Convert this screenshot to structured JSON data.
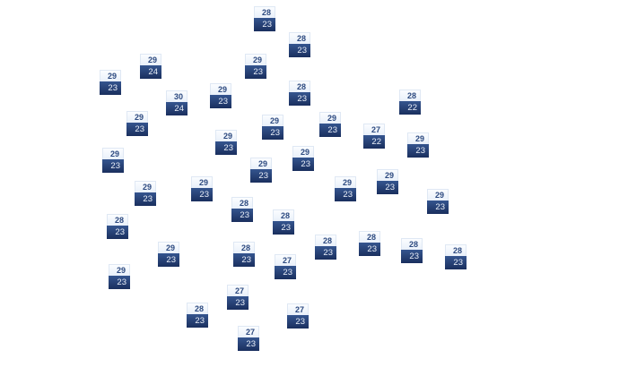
{
  "markers": [
    {
      "high": "28",
      "low": "23"
    },
    {
      "high": "28",
      "low": "23"
    },
    {
      "high": "29",
      "low": "24"
    },
    {
      "high": "29",
      "low": "23"
    },
    {
      "high": "29",
      "low": "23"
    },
    {
      "high": "30",
      "low": "24"
    },
    {
      "high": "29",
      "low": "23"
    },
    {
      "high": "28",
      "low": "23"
    },
    {
      "high": "28",
      "low": "22"
    },
    {
      "high": "29",
      "low": "23"
    },
    {
      "high": "29",
      "low": "23"
    },
    {
      "high": "29",
      "low": "23"
    },
    {
      "high": "27",
      "low": "22"
    },
    {
      "high": "29",
      "low": "23"
    },
    {
      "high": "29",
      "low": "23"
    },
    {
      "high": "29",
      "low": "23"
    },
    {
      "high": "29",
      "low": "23"
    },
    {
      "high": "29",
      "low": "23"
    },
    {
      "high": "29",
      "low": "23"
    },
    {
      "high": "29",
      "low": "23"
    },
    {
      "high": "29",
      "low": "23"
    },
    {
      "high": "29",
      "low": "23"
    },
    {
      "high": "29",
      "low": "23"
    },
    {
      "high": "28",
      "low": "23"
    },
    {
      "high": "28",
      "low": "23"
    },
    {
      "high": "28",
      "low": "23"
    },
    {
      "high": "29",
      "low": "23"
    },
    {
      "high": "28",
      "low": "23"
    },
    {
      "high": "28",
      "low": "23"
    },
    {
      "high": "28",
      "low": "23"
    },
    {
      "high": "28",
      "low": "23"
    },
    {
      "high": "28",
      "low": "23"
    },
    {
      "high": "27",
      "low": "23"
    },
    {
      "high": "29",
      "low": "23"
    },
    {
      "high": "27",
      "low": "23"
    },
    {
      "high": "28",
      "low": "23"
    },
    {
      "high": "27",
      "low": "23"
    },
    {
      "high": "27",
      "low": "23"
    }
  ],
  "colors": {
    "high_text": "#2d4a80",
    "low_bg": "#1f3566",
    "low_text": "#e8eef8"
  }
}
